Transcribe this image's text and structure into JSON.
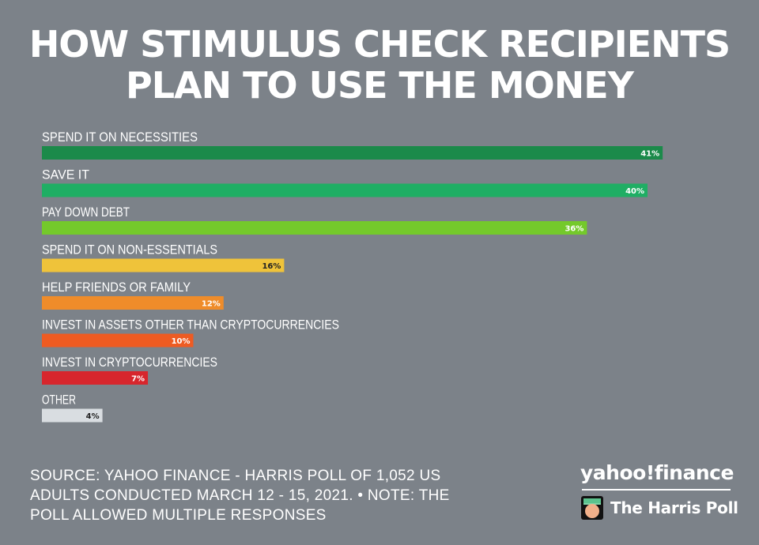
{
  "title": {
    "line1": "HOW STIMULUS CHECK RECIPIENTS",
    "line2": "PLAN TO USE THE MONEY"
  },
  "chart_data": {
    "type": "bar",
    "orientation": "horizontal",
    "title": "HOW STIMULUS CHECK RECIPIENTS PLAN TO USE THE MONEY",
    "categories": [
      "SPEND IT ON NECESSITIES",
      "SAVE IT",
      "PAY DOWN DEBT",
      "SPEND IT ON NON-ESSENTIALS",
      "HELP FRIENDS OR FAMILY",
      "INVEST IN ASSETS OTHER THAN CRYPTOCURRENCIES",
      "INVEST IN CRYPTOCURRENCIES",
      "OTHER"
    ],
    "values": [
      41,
      40,
      36,
      16,
      12,
      10,
      7,
      4
    ],
    "value_labels": [
      "41%",
      "40%",
      "36%",
      "16%",
      "12%",
      "10%",
      "7%",
      "4%"
    ],
    "colors": [
      "#1b8a4a",
      "#1fae64",
      "#74c92b",
      "#efc33a",
      "#ef8c2a",
      "#ee5b22",
      "#d7262d",
      "#d9dde1"
    ],
    "label_colors": [
      "#ffffff",
      "#ffffff",
      "#ffffff",
      "#222222",
      "#ffffff",
      "#ffffff",
      "#ffffff",
      "#222222"
    ],
    "xlim": [
      0,
      46
    ],
    "grid": false,
    "legend": "none"
  },
  "source": {
    "line1": "SOURCE: YAHOO FINANCE - HARRIS POLL OF 1,052 US",
    "line2": "ADULTS CONDUCTED MARCH 12 - 15, 2021. • NOTE: THE",
    "line3": "POLL ALLOWED MULTIPLE RESPONSES"
  },
  "logos": {
    "yahoo": "yahoo!finance",
    "harris": "The Harris Poll",
    "harris_icon": "harris-poll-face-icon"
  }
}
